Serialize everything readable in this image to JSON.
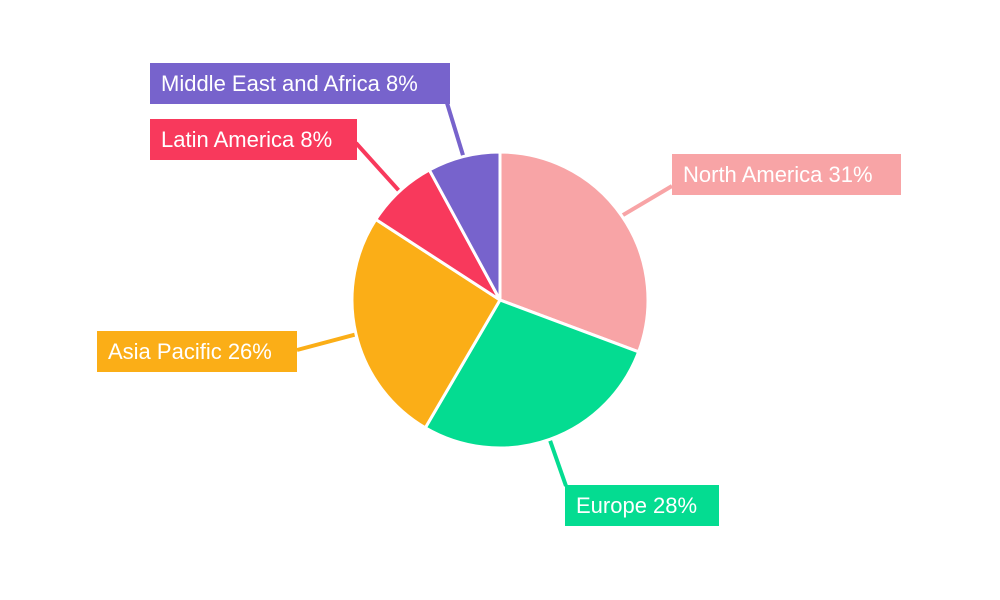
{
  "chart_data": {
    "type": "pie",
    "title": "",
    "background": "#FFFFFF",
    "legend": "none",
    "direction": "clockwise",
    "start_angle_deg": 0,
    "labels_style": "callout boxes with leader lines, white text on slice-colored background",
    "label_text_color": "#FFFFFF",
    "slice_separator_color": "#FFFFFF",
    "slices": [
      {
        "label": "North America",
        "value": 31,
        "percent": "31%",
        "label_text": "North America 31%",
        "color": "#F8A4A6"
      },
      {
        "label": "Europe",
        "value": 28,
        "percent": "28%",
        "label_text": "Europe 28%",
        "color": "#04DC91"
      },
      {
        "label": "Asia Pacific",
        "value": 26,
        "percent": "26%",
        "label_text": "Asia Pacific 26%",
        "color": "#FBAE17"
      },
      {
        "label": "Latin America",
        "value": 8,
        "percent": "8%",
        "label_text": "Latin America 8%",
        "color": "#F8395C"
      },
      {
        "label": "Middle East and Africa",
        "value": 8,
        "percent": "8%",
        "label_text": "Middle East and Africa 8%",
        "color": "#7763CC"
      }
    ]
  }
}
